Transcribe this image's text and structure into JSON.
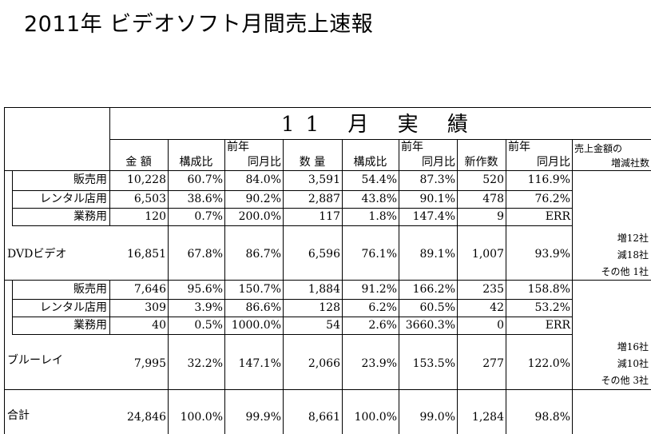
{
  "title": "2011年 ビデオソフト月間売上速報",
  "period_header": "11 月 実 績",
  "columns": {
    "amount": "金 額",
    "share_a": "構成比",
    "yoy_top": "前年",
    "yoy_a": "同月比",
    "quantity": "数 量",
    "share_q": "構成比",
    "yoy_top_q": "前年",
    "yoy_q": "同月比",
    "new_titles": "新作数",
    "yoy_top_n": "前年",
    "yoy_n": "同月比",
    "companies_top": "売上金額の",
    "companies_bottom": "増減社数"
  },
  "rows": [
    {
      "label": "販売用",
      "cells": [
        "10,228",
        "60.7%",
        "84.0%",
        "3,591",
        "54.4%",
        "87.3%",
        "520",
        "116.9%"
      ]
    },
    {
      "label": "レンタル店用",
      "cells": [
        "6,503",
        "38.6%",
        "90.2%",
        "2,887",
        "43.8%",
        "90.1%",
        "478",
        "76.2%"
      ]
    },
    {
      "label": "業務用",
      "cells": [
        "120",
        "0.7%",
        "200.0%",
        "117",
        "1.8%",
        "147.4%",
        "9",
        "ERR"
      ]
    },
    {
      "label": "DVDビデオ",
      "cells": [
        "16,851",
        "67.8%",
        "86.7%",
        "6,596",
        "76.1%",
        "89.1%",
        "1,007",
        "93.9%"
      ]
    },
    {
      "label": "販売用",
      "cells": [
        "7,646",
        "95.6%",
        "150.7%",
        "1,884",
        "91.2%",
        "166.2%",
        "235",
        "158.8%"
      ]
    },
    {
      "label": "レンタル店用",
      "cells": [
        "309",
        "3.9%",
        "86.6%",
        "128",
        "6.2%",
        "60.5%",
        "42",
        "53.2%"
      ]
    },
    {
      "label": "業務用",
      "cells": [
        "40",
        "0.5%",
        "1000.0%",
        "54",
        "2.6%",
        "3660.3%",
        "0",
        "ERR"
      ]
    },
    {
      "label": "ブルーレイ",
      "cells": [
        "7,995",
        "32.2%",
        "147.1%",
        "2,066",
        "23.9%",
        "153.5%",
        "277",
        "122.0%"
      ]
    },
    {
      "label": "合計",
      "cells": [
        "24,846",
        "100.0%",
        "99.9%",
        "8,661",
        "100.0%",
        "99.0%",
        "1,284",
        "98.8%"
      ]
    }
  ],
  "dvd_companies": [
    "増12社",
    "減18社",
    "その他 1社"
  ],
  "bd_companies": [
    "増16社",
    "減10社",
    "その他 3社"
  ]
}
